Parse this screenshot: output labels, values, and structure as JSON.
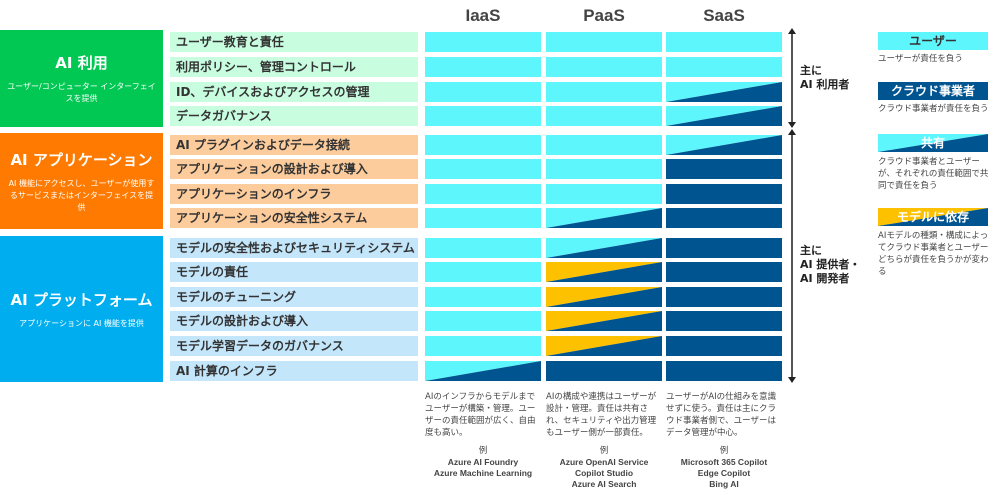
{
  "colors": {
    "user": "#5ef6fd",
    "cloud": "#005490",
    "model": "#fdc100",
    "group_usage": "#00c853",
    "group_app": "#ff7a00",
    "group_platform": "#00aeef",
    "label_usage": "#c8fde0",
    "label_app": "#fdcc9c",
    "label_platform": "#c4e6fb"
  },
  "columns": [
    "IaaS",
    "PaaS",
    "SaaS"
  ],
  "groups": [
    {
      "title": "AI 利用",
      "desc": "ユーザー/コンピューター インターフェイスを提供",
      "rows": [
        {
          "label": "ユーザー教育と責任",
          "cells": [
            "user",
            "user",
            "user"
          ]
        },
        {
          "label": "利用ポリシー、管理コントロール",
          "cells": [
            "user",
            "user",
            "user"
          ]
        },
        {
          "label": "ID、デバイスおよびアクセスの管理",
          "cells": [
            "user",
            "user",
            "shared"
          ]
        },
        {
          "label": "データガバナンス",
          "cells": [
            "user",
            "user",
            "shared"
          ]
        }
      ]
    },
    {
      "title": "AI アプリケーション",
      "desc": "AI 機能にアクセスし、ユーザーが使用するサービスまたはインターフェイスを提供",
      "rows": [
        {
          "label": "AI プラグインおよびデータ接続",
          "cells": [
            "user",
            "user",
            "shared"
          ]
        },
        {
          "label": "アプリケーションの設計および導入",
          "cells": [
            "user",
            "user",
            "cloud"
          ]
        },
        {
          "label": "アプリケーションのインフラ",
          "cells": [
            "user",
            "user",
            "cloud"
          ]
        },
        {
          "label": "アプリケーションの安全性システム",
          "cells": [
            "user",
            "shared",
            "cloud"
          ]
        }
      ]
    },
    {
      "title": "AI プラットフォーム",
      "desc": "アプリケーションに AI 機能を提供",
      "rows": [
        {
          "label": "モデルの安全性およびセキュリティシステム",
          "cells": [
            "user",
            "shared",
            "cloud"
          ]
        },
        {
          "label": "モデルの責任",
          "cells": [
            "user",
            "model",
            "cloud"
          ]
        },
        {
          "label": "モデルのチューニング",
          "cells": [
            "user",
            "model",
            "cloud"
          ]
        },
        {
          "label": "モデルの設計および導入",
          "cells": [
            "user",
            "model",
            "cloud"
          ]
        },
        {
          "label": "モデル学習データのガバナンス",
          "cells": [
            "user",
            "model",
            "cloud"
          ]
        },
        {
          "label": "AI 計算のインフラ",
          "cells": [
            "shared",
            "cloud",
            "cloud"
          ]
        }
      ]
    }
  ],
  "roles": [
    "主に\nAI 利用者",
    "主に\nAI 提供者・\nAI 開発者"
  ],
  "legend": [
    {
      "type": "user",
      "label": "ユーザー",
      "desc": "ユーザーが責任を負う"
    },
    {
      "type": "cloud",
      "label": "クラウド事業者",
      "desc": "クラウド事業者が責任を負う"
    },
    {
      "type": "shared",
      "label": "共有",
      "desc": "クラウド事業者とユーザーが、それぞれの責任範囲で共同で責任を負う"
    },
    {
      "type": "model",
      "label": "モデルに依存",
      "desc": "AIモデルの種類・構成によってクラウド事業者とユーザーどちらが責任を負うかが変わる"
    }
  ],
  "notes": [
    "AIのインフラからモデルまでユーザーが構築・管理。ユーザーの責任範囲が広く、自由度も高い。",
    "AIの構成や連携はユーザーが設計・管理。責任は共有され、セキュリティや出力管理もユーザー側が一部責任。",
    "ユーザーがAIの仕組みを意識せずに使う。責任は主にクラウド事業者側で、ユーザーはデータ管理が中心。"
  ],
  "examples": [
    {
      "heading": "例",
      "items": [
        "Azure AI Foundry",
        "Azure Machine Learning"
      ]
    },
    {
      "heading": "例",
      "items": [
        "Azure OpenAI Service",
        "Copilot Studio",
        "Azure AI Search"
      ]
    },
    {
      "heading": "例",
      "items": [
        "Microsoft 365 Copilot",
        "Edge Copilot",
        "Bing AI"
      ]
    }
  ]
}
